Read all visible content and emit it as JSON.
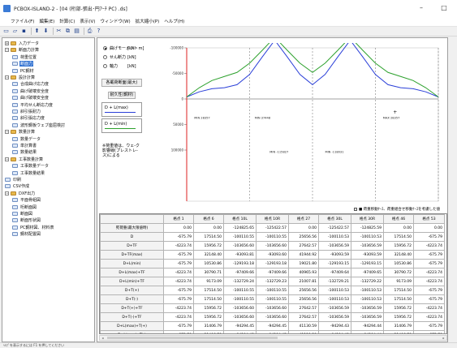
{
  "window": {
    "title": "PCBOX-ISLAND-2 - [04 (桁部-張出･円ｱｰﾁ PC) .ds]",
    "minimize": "–",
    "maximize": "□"
  },
  "menu": [
    "ファイル(F)",
    "編集(E)",
    "計算(C)",
    "表示(V)",
    "ウィンドウ(W)",
    "拡大縮小(P)",
    "ヘルプ(H)"
  ],
  "toolbar": {
    "icons": [
      "new-icon",
      "open-icon",
      "save-icon",
      "arrow-up-icon",
      "arrow-down-icon",
      "cut-icon",
      "copy-icon",
      "paste-icon",
      "print-icon",
      "help-icon"
    ],
    "glyphs": [
      "▭",
      "▱",
      "▪",
      "⬆",
      "⬇",
      "✂",
      "⧉",
      "▤",
      "⎙",
      "?"
    ]
  },
  "tree": [
    {
      "label": "入力データ",
      "level": 0,
      "toggle": "+",
      "kind": "group"
    },
    {
      "label": "断面力計算",
      "level": 0,
      "toggle": "−",
      "kind": "group"
    },
    {
      "label": "荷重位置",
      "level": 1,
      "toggle": "",
      "kind": "leaf"
    },
    {
      "label": "断面力",
      "level": 1,
      "toggle": "",
      "kind": "leaf",
      "selected": true
    },
    {
      "label": "PC鋼材",
      "level": 1,
      "toggle": "",
      "kind": "leaf"
    },
    {
      "label": "設計計算",
      "level": 0,
      "toggle": "−",
      "kind": "group"
    },
    {
      "label": "合成曲げ応力度",
      "level": 1,
      "toggle": "",
      "kind": "leaf"
    },
    {
      "label": "曲げ破壊安全度",
      "level": 1,
      "toggle": "",
      "kind": "leaf"
    },
    {
      "label": "曲げ破壊安全度",
      "level": 1,
      "toggle": "",
      "kind": "leaf"
    },
    {
      "label": "平均せん断応力度",
      "level": 1,
      "toggle": "",
      "kind": "leaf"
    },
    {
      "label": "斜引張耐力",
      "level": 1,
      "toggle": "",
      "kind": "leaf"
    },
    {
      "label": "斜引張応力度",
      "level": 1,
      "toggle": "",
      "kind": "leaf"
    },
    {
      "label": "波形鋼板ウェブ座屈検討",
      "level": 1,
      "toggle": "",
      "kind": "leaf"
    },
    {
      "label": "数量計算",
      "level": 0,
      "toggle": "−",
      "kind": "group"
    },
    {
      "label": "数量データ",
      "level": 1,
      "toggle": "",
      "kind": "leaf"
    },
    {
      "label": "単計算書",
      "level": 1,
      "toggle": "",
      "kind": "leaf"
    },
    {
      "label": "数量結果",
      "level": 1,
      "toggle": "",
      "kind": "leaf"
    },
    {
      "label": "工事数量計算",
      "level": 0,
      "toggle": "−",
      "kind": "group"
    },
    {
      "label": "工事数量データ",
      "level": 1,
      "toggle": "",
      "kind": "leaf"
    },
    {
      "label": "工事数量結果",
      "level": 1,
      "toggle": "",
      "kind": "leaf"
    },
    {
      "label": "印刷",
      "level": 0,
      "toggle": "",
      "kind": "leaf"
    },
    {
      "label": "CSV作成",
      "level": 0,
      "toggle": "",
      "kind": "leaf"
    },
    {
      "label": "DXF出力",
      "level": 0,
      "toggle": "−",
      "kind": "group"
    },
    {
      "label": "平面骨組図",
      "level": 1,
      "toggle": "",
      "kind": "leaf"
    },
    {
      "label": "桁断面図",
      "level": 1,
      "toggle": "",
      "kind": "leaf"
    },
    {
      "label": "断面図",
      "level": 1,
      "toggle": "",
      "kind": "leaf"
    },
    {
      "label": "断面形状図",
      "level": 1,
      "toggle": "",
      "kind": "leaf"
    },
    {
      "label": "PC鋼材図、材料表",
      "level": 1,
      "toggle": "",
      "kind": "leaf"
    },
    {
      "label": "鋼材配置図",
      "level": 1,
      "toggle": "",
      "kind": "leaf"
    }
  ],
  "options": [
    {
      "label": "曲げモーメント",
      "unit": "[kN・m]",
      "checked": true
    },
    {
      "label": "せん断力",
      "unit": "[kN]",
      "checked": false
    },
    {
      "label": "軸力",
      "unit": "[kN]",
      "checked": false
    }
  ],
  "buttons": {
    "load_case": "各載荷断面(最大)",
    "long_term": "耐久性(鋼材)"
  },
  "legend": [
    {
      "label": "D + L(max)",
      "color": "#2a3fd8"
    },
    {
      "label": "D + L(min)",
      "color": "#2da12d"
    }
  ],
  "note": "※荷重値は、ウェ-ク\n影響線(プレストレ-\nス)による",
  "chart_data": {
    "type": "line",
    "title": "",
    "xlabel": "",
    "ylabel": "",
    "y_ticks": [
      "-200000",
      "-150000",
      "-100000",
      "-50000",
      "0",
      "50000",
      "100000"
    ],
    "ylim": [
      -200000,
      100000
    ],
    "x": [
      0,
      5,
      10,
      15,
      20,
      25,
      30,
      35,
      40,
      45,
      50,
      55,
      60,
      65,
      70,
      75,
      80,
      85,
      90,
      95,
      100
    ],
    "series": [
      {
        "name": "D + L(max)",
        "color": "#2a3fd8",
        "values": [
          -4000,
          -14000,
          -20000,
          -22000,
          -28000,
          -48000,
          -82000,
          -115000,
          -82000,
          -48000,
          -28000,
          -48000,
          -82000,
          -115000,
          -82000,
          -48000,
          -28000,
          -22000,
          -20000,
          -14000,
          -4000
        ]
      },
      {
        "name": "D + L(min)",
        "color": "#2da12d",
        "values": [
          -4000,
          -22000,
          -36000,
          -44000,
          -52000,
          -70000,
          -95000,
          -121000,
          -95000,
          -70000,
          -52000,
          -70000,
          -95000,
          -121000,
          -95000,
          -70000,
          -52000,
          -44000,
          -36000,
          -22000,
          -4000
        ]
      }
    ],
    "annotations": [
      "MIN -115827",
      "MIN -118031",
      "MIN 28357",
      "MIN 37448",
      "MAX 28357"
    ]
  },
  "info": "■ 荷重移動ｹｰｽ、荷重組合せ移動ｹｰｽを考慮した値",
  "grid": {
    "headers": [
      "",
      "格点 1",
      "格点 6",
      "格点 10L",
      "格点 10R",
      "格点 27",
      "格点 30L",
      "格点 30R",
      "格点 46",
      "格点 53"
    ],
    "rows": [
      [
        "死荷重(最大限値時)",
        "0.00",
        "0.00",
        "-124825.65",
        "-125422.57",
        "0.00",
        "-125422.57",
        "-124825.59",
        "0.00",
        "0.00"
      ],
      [
        "D",
        "-675.79",
        "17514.50",
        "-100110.55",
        "-100110.55",
        "25656.56",
        "-100110.53",
        "-100110.53",
        "17514.50",
        "-675.79"
      ],
      [
        "D+TF",
        "-4223.74",
        "15956.72",
        "-103656.60",
        "-103656.60",
        "27642.57",
        "-103656.59",
        "-103656.59",
        "15956.72",
        "-4223.74"
      ],
      [
        "D+TF(max)",
        "-675.79",
        "32148.40",
        "-93093.81",
        "-93093.60",
        "41944.92",
        "-93093.59",
        "-93093.59",
        "32148.40",
        "-675.79"
      ],
      [
        "D+L(min)",
        "-675.79",
        "10530.86",
        "-129193.18",
        "-129193.18",
        "19021.80",
        "-129193.15",
        "-129193.15",
        "10530.86",
        "-675.79"
      ],
      [
        "D+L(max)+TF",
        "-4223.74",
        "30790.71",
        "-97409.66",
        "-97409.66",
        "40965.93",
        "-97409.64",
        "-97409.65",
        "30790.72",
        "-4223.74"
      ],
      [
        "D+L(min)+TF",
        "-4223.74",
        "9173.09",
        "-132729.24",
        "-132729.23",
        "21007.81",
        "-132729.21",
        "-132729.22",
        "9173.09",
        "-4223.74"
      ],
      [
        "D+T(+)",
        "-675.79",
        "17514.50",
        "-100110.55",
        "-100110.55",
        "25656.56",
        "-100110.53",
        "-100110.53",
        "17514.50",
        "-675.79"
      ],
      [
        "D+T(-)",
        "-675.79",
        "17514.50",
        "-100110.55",
        "-100110.55",
        "25656.56",
        "-100110.53",
        "-100110.53",
        "17514.50",
        "-675.79"
      ],
      [
        "D+T(+)+TF",
        "-4223.74",
        "15956.72",
        "-103656.60",
        "-103656.60",
        "27642.57",
        "-103656.59",
        "-103656.59",
        "15956.72",
        "-4223.74"
      ],
      [
        "D+T(-)+TF",
        "-4223.74",
        "15956.72",
        "-103656.60",
        "-103656.60",
        "27642.57",
        "-103656.59",
        "-103656.59",
        "15956.72",
        "-4223.74"
      ],
      [
        "D+L(max)+T(+)",
        "-675.79",
        "31406.79",
        "-94294.45",
        "-94294.45",
        "41130.59",
        "-94294.43",
        "-94294.44",
        "31406.79",
        "-675.79"
      ],
      [
        "D+L(max)+T(-)",
        "-675.79",
        "31406.79",
        "-94294.45",
        "-94294.45",
        "41130.59",
        "-94294.43",
        "-94294.44",
        "31406.79",
        "-675.79"
      ]
    ]
  },
  "status": "ﾍﾙﾌﾟを表示するには F1 を押してください"
}
